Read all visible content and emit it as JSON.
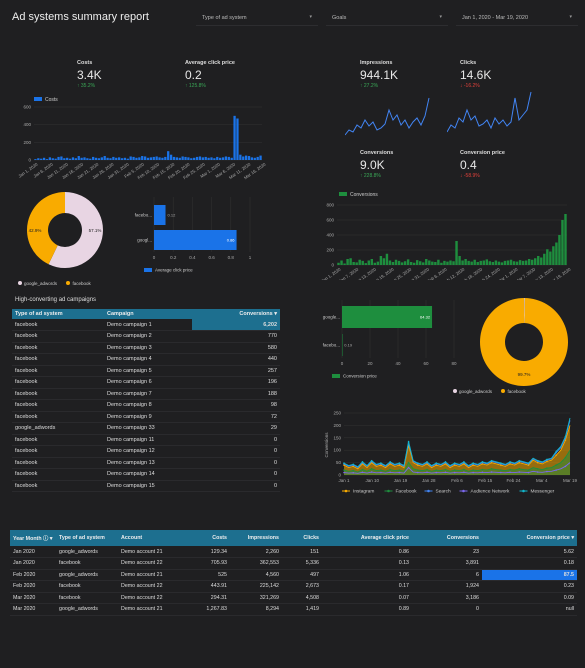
{
  "header": {
    "title": "Ad systems summary report"
  },
  "filters": [
    {
      "label": "Type of ad system"
    },
    {
      "label": "Goals"
    },
    {
      "label": "Jan 1, 2020 - Mar 19, 2020"
    }
  ],
  "kpis": {
    "costs": {
      "label": "Costs",
      "value": "3.4K",
      "delta": "↑ 35.2%",
      "dir": "up"
    },
    "avg_click_price": {
      "label": "Average click price",
      "value": "0.2",
      "delta": "↑ 125.8%",
      "dir": "up"
    },
    "impressions": {
      "label": "Impressions",
      "value": "944.1K",
      "delta": "↑ 27.2%",
      "dir": "up"
    },
    "clicks": {
      "label": "Clicks",
      "value": "14.6K",
      "delta": "↓ -16.2%",
      "dir": "down"
    },
    "conversions": {
      "label": "Conversions",
      "value": "9.0K",
      "delta": "↑ 228.8%",
      "dir": "up"
    },
    "conversion_price": {
      "label": "Conversion price",
      "value": "0.4",
      "delta": "↓ -58.9%",
      "dir": "down"
    }
  },
  "colors": {
    "blue": "#1a73e8",
    "green": "#1e8e3e",
    "orange": "#f9ab00",
    "pink": "#e8d5e3",
    "header": "#1d6f8f"
  },
  "chart_data": [
    {
      "id": "costs-bar",
      "type": "bar",
      "legend": [
        "Costs"
      ],
      "ylim": [
        0,
        600
      ],
      "yticks": [
        "0",
        "200",
        "400",
        "600"
      ],
      "xticks": [
        "Jan 1, 2020",
        "Jan 6, 2020",
        "Jan 11, 2020",
        "Jan 16, 2020",
        "Jan 21, 2020",
        "Jan 26, 2020",
        "Jan 31, 2020",
        "Feb 5, 2020",
        "Feb 10, 2020",
        "Feb 15, 2020",
        "Feb 20, 2020",
        "Feb 25, 2020",
        "Mar 1, 2020",
        "Mar 6, 2020",
        "Mar 11, 2020",
        "Mar 16, 2020"
      ],
      "values": [
        10,
        20,
        15,
        25,
        10,
        30,
        20,
        15,
        35,
        40,
        20,
        25,
        15,
        30,
        20,
        45,
        25,
        30,
        20,
        15,
        35,
        25,
        20,
        30,
        45,
        25,
        20,
        35,
        25,
        30,
        20,
        25,
        15,
        40,
        35,
        25,
        30,
        45,
        40,
        25,
        30,
        35,
        40,
        30,
        25,
        35,
        100,
        60,
        35,
        30,
        25,
        40,
        35,
        30,
        20,
        25,
        35,
        40,
        30,
        35,
        25,
        30,
        20,
        35,
        25,
        30,
        40,
        35,
        25,
        500,
        470,
        60,
        40,
        50,
        45,
        30,
        25,
        35,
        50
      ]
    },
    {
      "id": "system-donut",
      "type": "pie",
      "slices": [
        {
          "name": "google_adwords",
          "value": 57.1
        },
        {
          "name": "facebook",
          "value": 42.9
        }
      ],
      "labels": [
        "42.9%",
        "57.1%"
      ]
    },
    {
      "id": "avg-click-hbar",
      "type": "bar",
      "categories": [
        "facebo...",
        "googl..."
      ],
      "values": [
        0.12,
        0.86
      ],
      "data_labels": [
        "0.12",
        "0.86"
      ],
      "xticks": [
        "0",
        "0.2",
        "0.4",
        "0.6",
        "0.8",
        "1"
      ],
      "xlim": [
        0,
        1
      ],
      "legend": [
        "Average click price"
      ]
    },
    {
      "id": "conversions-bar",
      "type": "bar",
      "legend": [
        "Conversions"
      ],
      "ylim": [
        0,
        800
      ],
      "yticks": [
        "0",
        "200",
        "400",
        "600",
        "800"
      ],
      "xticks": [
        "Jan 1, 2020",
        "Jan 7, 2020",
        "Jan 13, 2020",
        "Jan 19, 2020",
        "Jan 25, 2020",
        "Jan 31, 2020",
        "Feb 6, 2020",
        "Feb 12, 2020",
        "Feb 18, 2020",
        "Feb 24, 2020",
        "Mar 1, 2020",
        "Mar 7, 2020",
        "Mar 13, 2020",
        "Mar 19, 2020"
      ],
      "values": [
        30,
        60,
        20,
        80,
        90,
        40,
        35,
        70,
        55,
        25,
        60,
        80,
        30,
        45,
        120,
        90,
        150,
        60,
        40,
        70,
        55,
        35,
        50,
        75,
        40,
        30,
        65,
        50,
        35,
        80,
        60,
        45,
        40,
        70,
        30,
        55,
        45,
        60,
        50,
        320,
        120,
        60,
        80,
        55,
        45,
        70,
        40,
        55,
        60,
        75,
        50,
        40,
        60,
        45,
        35,
        55,
        60,
        70,
        50,
        45,
        65,
        55,
        60,
        80,
        70,
        90,
        120,
        100,
        150,
        210,
        180,
        250,
        300,
        400,
        600,
        680
      ]
    },
    {
      "id": "conv-price-hbar",
      "type": "bar",
      "categories": [
        "google...",
        "facebo..."
      ],
      "values": [
        64.32,
        0.19
      ],
      "data_labels": [
        "64.32",
        "0.19"
      ],
      "xticks": [
        "0",
        "20",
        "40",
        "60",
        "80"
      ],
      "xlim": [
        0,
        80
      ],
      "legend": [
        "Conversion price"
      ]
    },
    {
      "id": "goal-donut",
      "type": "pie",
      "slices": [
        {
          "name": "google_adwords",
          "value": 0.3
        },
        {
          "name": "facebook",
          "value": 99.7
        }
      ],
      "labels": [
        "99.7%"
      ]
    },
    {
      "id": "platform-area",
      "type": "area",
      "ylabel": "Conversions",
      "ylim": [
        0,
        250
      ],
      "yticks": [
        "0",
        "50",
        "100",
        "150",
        "200",
        "250"
      ],
      "xticks": [
        "Jan 1",
        "Jan 10",
        "Jan 19",
        "Jan 28",
        "Feb 6",
        "Feb 15",
        "Feb 24",
        "Mar 4",
        "Mar 19"
      ],
      "series": [
        {
          "name": "Instagram",
          "color": "#f9ab00",
          "values": [
            40,
            30,
            35,
            25,
            45,
            30,
            50,
            35,
            40,
            30,
            45,
            35,
            40,
            30,
            120,
            50,
            40,
            35,
            45,
            30,
            40,
            35,
            45,
            30,
            40,
            35,
            45,
            30,
            40,
            35,
            45,
            40,
            50,
            45,
            40,
            35,
            45,
            40,
            50,
            45,
            40,
            60,
            50,
            45,
            55,
            60,
            80,
            100,
            140,
            200
          ]
        },
        {
          "name": "Facebook",
          "color": "#1e8e3e",
          "values": [
            20,
            15,
            18,
            12,
            22,
            15,
            25,
            18,
            20,
            15,
            22,
            18,
            20,
            15,
            50,
            25,
            20,
            18,
            22,
            15,
            20,
            18,
            22,
            15,
            20,
            18,
            22,
            15,
            20,
            18,
            22,
            20,
            25,
            22,
            20,
            18,
            22,
            20,
            25,
            22,
            20,
            30,
            25,
            22,
            28,
            30,
            40,
            50,
            70,
            100
          ]
        },
        {
          "name": "Search",
          "color": "#4285f4",
          "values": [
            45,
            35,
            40,
            30,
            50,
            35,
            55,
            40,
            45,
            35,
            50,
            40,
            45,
            35,
            130,
            55,
            45,
            40,
            50,
            35,
            45,
            40,
            50,
            35,
            45,
            40,
            50,
            35,
            45,
            40,
            50,
            45,
            55,
            50,
            45,
            40,
            50,
            45,
            55,
            50,
            45,
            65,
            55,
            50,
            60,
            65,
            90,
            110,
            150,
            220
          ]
        },
        {
          "name": "Audience Network",
          "color": "#7b68ee",
          "values": [
            10,
            8,
            9,
            7,
            11,
            8,
            12,
            9,
            10,
            8,
            11,
            9,
            10,
            8,
            30,
            12,
            10,
            9,
            11,
            8,
            10,
            9,
            11,
            8,
            10,
            9,
            11,
            8,
            10,
            9,
            11,
            10,
            12,
            11,
            10,
            9,
            11,
            10,
            12,
            11,
            10,
            15,
            12,
            11,
            14,
            15,
            20,
            25,
            35,
            50
          ]
        },
        {
          "name": "Messenger",
          "color": "#12b5cb",
          "values": [
            48,
            38,
            43,
            33,
            53,
            38,
            58,
            43,
            48,
            38,
            53,
            43,
            48,
            38,
            135,
            58,
            48,
            43,
            53,
            38,
            48,
            43,
            53,
            38,
            48,
            43,
            53,
            38,
            48,
            43,
            53,
            48,
            58,
            53,
            48,
            43,
            53,
            48,
            58,
            53,
            48,
            68,
            58,
            53,
            63,
            68,
            95,
            115,
            155,
            230
          ]
        }
      ]
    }
  ],
  "high_conv": {
    "title": "High-converting ad campaigns",
    "columns": [
      "Type of ad system",
      "Campaign",
      "Conversions ▾"
    ],
    "rows": [
      [
        "facebook",
        "Demo campaign 1",
        "6,202"
      ],
      [
        "facebook",
        "Demo campaign 2",
        "770"
      ],
      [
        "facebook",
        "Demo campaign 3",
        "580"
      ],
      [
        "facebook",
        "Demo campaign 4",
        "440"
      ],
      [
        "facebook",
        "Demo campaign 5",
        "257"
      ],
      [
        "facebook",
        "Demo campaign 6",
        "196"
      ],
      [
        "facebook",
        "Demo campaign 7",
        "188"
      ],
      [
        "facebook",
        "Demo campaign 8",
        "98"
      ],
      [
        "facebook",
        "Demo campaign 9",
        "72"
      ],
      [
        "google_adwords",
        "Demo campaign 33",
        "29"
      ],
      [
        "facebook",
        "Demo campaign 11",
        "0"
      ],
      [
        "facebook",
        "Demo campaign 12",
        "0"
      ],
      [
        "facebook",
        "Demo campaign 13",
        "0"
      ],
      [
        "facebook",
        "Demo campaign 14",
        "0"
      ],
      [
        "facebook",
        "Demo campaign 15",
        "0"
      ]
    ]
  },
  "monthly": {
    "columns": [
      "Year Month ⓘ ▾",
      "Type of ad system",
      "Account",
      "Costs",
      "Impressions",
      "Clicks",
      "Average click price",
      "Conversions",
      "Conversion price ▾"
    ],
    "rows": [
      [
        "Jan 2020",
        "google_adwords",
        "Demo account 21",
        "129.34",
        "2,260",
        "151",
        "0.86",
        "23",
        "5.62"
      ],
      [
        "Jan 2020",
        "facebook",
        "Demo account 22",
        "705.93",
        "362,553",
        "5,336",
        "0.13",
        "3,891",
        "0.18"
      ],
      [
        "Feb 2020",
        "google_adwords",
        "Demo account 21",
        "525",
        "4,560",
        "497",
        "1.06",
        "6",
        "87.5"
      ],
      [
        "Feb 2020",
        "facebook",
        "Demo account 22",
        "443.91",
        "225,142",
        "2,673",
        "0.17",
        "1,924",
        "0.23"
      ],
      [
        "Mar 2020",
        "facebook",
        "Demo account 22",
        "294.31",
        "321,269",
        "4,508",
        "0.07",
        "3,186",
        "0.09"
      ],
      [
        "Mar 2020",
        "google_adwords",
        "Demo account 21",
        "1,267.83",
        "8,294",
        "1,419",
        "0.89",
        "0",
        "null"
      ]
    ]
  }
}
